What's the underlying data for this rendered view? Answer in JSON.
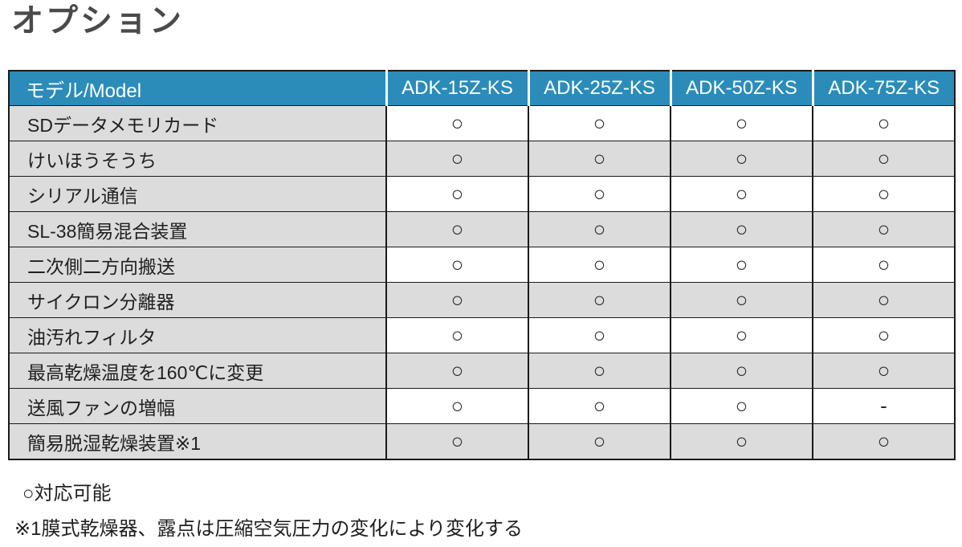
{
  "title": "オプション",
  "table": {
    "header": {
      "model_label": "モデル/Model",
      "columns": [
        "ADK-15Z-KS",
        "ADK-25Z-KS",
        "ADK-50Z-KS",
        "ADK-75Z-KS"
      ]
    },
    "rows": [
      {
        "label": "SDデータメモリカード",
        "values": [
          "○",
          "○",
          "○",
          "○"
        ]
      },
      {
        "label": "けいほうそうち",
        "values": [
          "○",
          "○",
          "○",
          "○"
        ]
      },
      {
        "label": "シリアル通信",
        "values": [
          "○",
          "○",
          "○",
          "○"
        ]
      },
      {
        "label": "SL-38簡易混合装置",
        "values": [
          "○",
          "○",
          "○",
          "○"
        ]
      },
      {
        "label": "二次側二方向搬送",
        "values": [
          "○",
          "○",
          "○",
          "○"
        ]
      },
      {
        "label": "サイクロン分離器",
        "values": [
          "○",
          "○",
          "○",
          "○"
        ]
      },
      {
        "label": "油汚れフィルタ",
        "values": [
          "○",
          "○",
          "○",
          "○"
        ]
      },
      {
        "label": "最高乾燥温度を160℃に変更",
        "values": [
          "○",
          "○",
          "○",
          "○"
        ]
      },
      {
        "label": "送風ファンの増幅",
        "values": [
          "○",
          "○",
          "○",
          "-"
        ]
      },
      {
        "label": "簡易脱湿乾燥装置※1",
        "values": [
          "○",
          "○",
          "○",
          "○"
        ]
      }
    ]
  },
  "legend": {
    "available": "○対応可能",
    "note1": "※1膜式乾燥器、露点は圧縮空気圧力の変化により変化する"
  },
  "colors": {
    "header_bg": "#2b8cba",
    "header_text": "#ffffff",
    "label_cell_bg": "#dcdcdc",
    "row_alt_bg": "#dcdcdc",
    "row_bg": "#ffffff",
    "border": "#1a1a1a",
    "title_text": "#4a4a4a",
    "body_text": "#1f1f1f"
  }
}
